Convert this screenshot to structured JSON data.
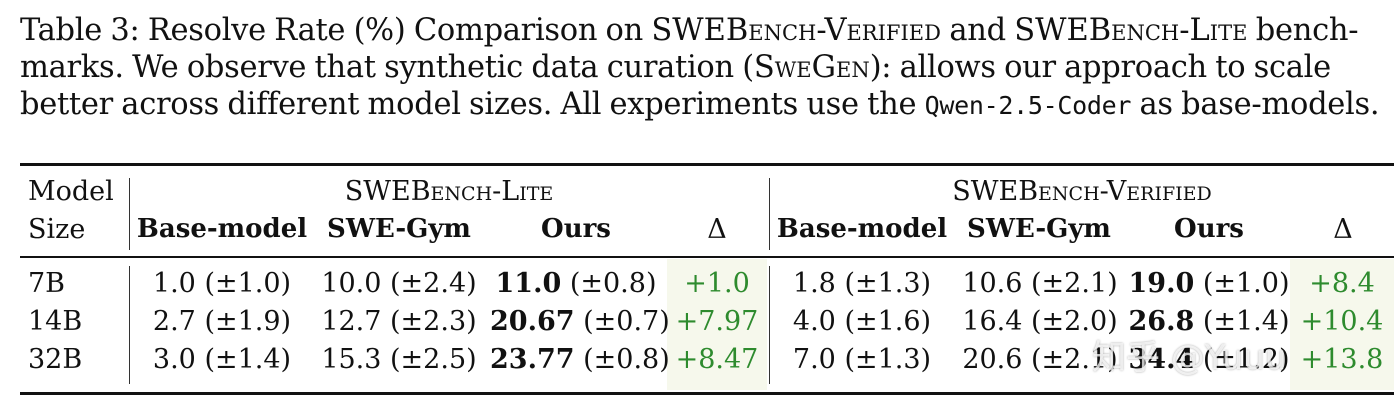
{
  "caption": {
    "p1": "Table 3: Resolve Rate (%) Comparison on ",
    "b1": "SWEBench-Verified",
    "p2": " and ",
    "b2": "SWEBench-Lite",
    "p3": " bench-marks. We observe that synthetic data curation (",
    "b3": "SweGen",
    "p4": "): allows our approach to scale better across different model sizes. All experiments use the ",
    "code": "Qwen-2.5-Coder",
    "p5": " as base-models."
  },
  "table": {
    "model_header_1": "Model",
    "model_header_2": "Size",
    "group_lite": "SWEBench-Lite",
    "group_verified": "SWEBench-Verified",
    "columns": [
      "Base-model",
      "SWE-Gym",
      "Ours",
      "Δ"
    ],
    "rows": [
      {
        "size": "7B",
        "lite": {
          "base": "1.0 (±1.0)",
          "gym": "10.0 (±2.4)",
          "ours_main": "11.0",
          "ours_err": " (±0.8)",
          "delta": "+1.0"
        },
        "verified": {
          "base": "1.8 (±1.3)",
          "gym": "10.6 (±2.1)",
          "ours_main": "19.0",
          "ours_err": " (±1.0)",
          "delta": "+8.4"
        }
      },
      {
        "size": "14B",
        "lite": {
          "base": "2.7 (±1.9)",
          "gym": "12.7 (±2.3)",
          "ours_main": "20.67",
          "ours_err": " (±0.7)",
          "delta": "+7.97"
        },
        "verified": {
          "base": "4.0 (±1.6)",
          "gym": "16.4 (±2.0)",
          "ours_main": "26.8",
          "ours_err": " (±1.4)",
          "delta": "+10.4"
        }
      },
      {
        "size": "32B",
        "lite": {
          "base": "3.0 (±1.4)",
          "gym": "15.3 (±2.5)",
          "ours_main": "23.77",
          "ours_err": " (±0.8)",
          "delta": "+8.47"
        },
        "verified": {
          "base": "7.0 (±1.3)",
          "gym": "20.6 (±2.1)",
          "ours_main": "34.4",
          "ours_err": " (±1.2)",
          "delta": "+13.8"
        }
      }
    ]
  },
  "watermark": "知乎 @Yuuu"
}
